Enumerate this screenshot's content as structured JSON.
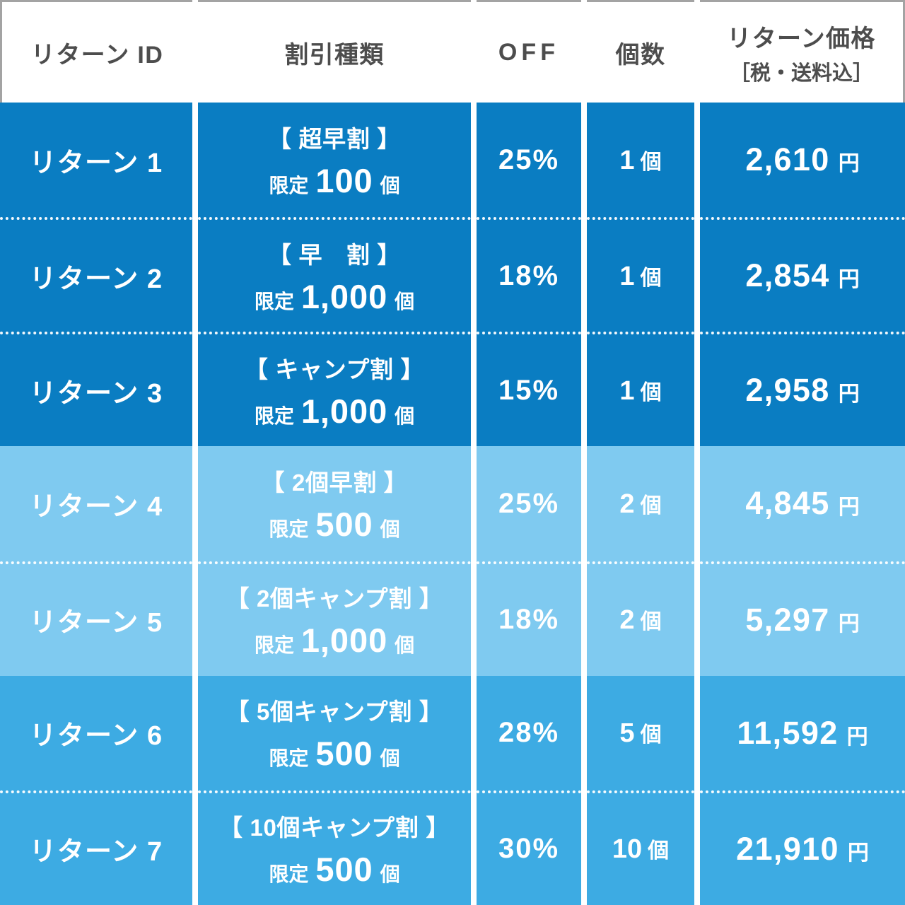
{
  "header": {
    "col_return_id": "リターン ID",
    "col_discount": "割引種類",
    "col_off": "OFF",
    "col_qty": "個数",
    "col_price_line1": "リターン価格",
    "col_price_line2": "［税・送料込］"
  },
  "rows": [
    {
      "id": "リターン 1",
      "discount_title": "【 超早割 】",
      "limit_prefix": "限定",
      "limit_count": "100",
      "limit_suffix": "個",
      "off": "25%",
      "qty_num": "1",
      "qty_unit": "個",
      "price": "2,610",
      "price_unit": "円"
    },
    {
      "id": "リターン 2",
      "discount_title": "【 早　割 】",
      "limit_prefix": "限定",
      "limit_count": "1,000",
      "limit_suffix": "個",
      "off": "18%",
      "qty_num": "1",
      "qty_unit": "個",
      "price": "2,854",
      "price_unit": "円"
    },
    {
      "id": "リターン 3",
      "discount_title": "【 キャンプ割 】",
      "limit_prefix": "限定",
      "limit_count": "1,000",
      "limit_suffix": "個",
      "off": "15%",
      "qty_num": "1",
      "qty_unit": "個",
      "price": "2,958",
      "price_unit": "円"
    },
    {
      "id": "リターン 4",
      "discount_title": "【 2個早割 】",
      "limit_prefix": "限定",
      "limit_count": "500",
      "limit_suffix": "個",
      "off": "25%",
      "qty_num": "2",
      "qty_unit": "個",
      "price": "4,845",
      "price_unit": "円"
    },
    {
      "id": "リターン 5",
      "discount_title": "【 2個キャンプ割 】",
      "limit_prefix": "限定",
      "limit_count": "1,000",
      "limit_suffix": "個",
      "off": "18%",
      "qty_num": "2",
      "qty_unit": "個",
      "price": "5,297",
      "price_unit": "円"
    },
    {
      "id": "リターン 6",
      "discount_title": "【 5個キャンプ割 】",
      "limit_prefix": "限定",
      "limit_count": "500",
      "limit_suffix": "個",
      "off": "28%",
      "qty_num": "5",
      "qty_unit": "個",
      "price": "11,592",
      "price_unit": "円"
    },
    {
      "id": "リターン 7",
      "discount_title": "【 10個キャンプ割 】",
      "limit_prefix": "限定",
      "limit_count": "500",
      "limit_suffix": "個",
      "off": "30%",
      "qty_num": "10",
      "qty_unit": "個",
      "price": "21,910",
      "price_unit": "円"
    }
  ],
  "colors": {
    "row_dark": "#0a7dc2",
    "row_light": "#7fcaf0",
    "row_medium": "#3dabe3",
    "header_text": "#4d4d4d",
    "body_text": "#ffffff",
    "header_border": "#a3a3a3"
  },
  "chart_data": {
    "type": "table",
    "columns": [
      "リターン ID",
      "割引種類",
      "OFF",
      "個数",
      "リターン価格［税・送料込］"
    ],
    "rows": [
      [
        "リターン 1",
        "【超早割】限定 100 個",
        "25%",
        "1 個",
        "2,610 円"
      ],
      [
        "リターン 2",
        "【早割】限定 1,000 個",
        "18%",
        "1 個",
        "2,854 円"
      ],
      [
        "リターン 3",
        "【キャンプ割】限定 1,000 個",
        "15%",
        "1 個",
        "2,958 円"
      ],
      [
        "リターン 4",
        "【2個早割】限定 500 個",
        "25%",
        "2 個",
        "4,845 円"
      ],
      [
        "リターン 5",
        "【2個キャンプ割】限定 1,000 個",
        "18%",
        "2 個",
        "5,297 円"
      ],
      [
        "リターン 6",
        "【5個キャンプ割】限定 500 個",
        "28%",
        "5 個",
        "11,592 円"
      ],
      [
        "リターン 7",
        "【10個キャンプ割】限定 500 個",
        "30%",
        "10 個",
        "21,910 円"
      ]
    ]
  }
}
